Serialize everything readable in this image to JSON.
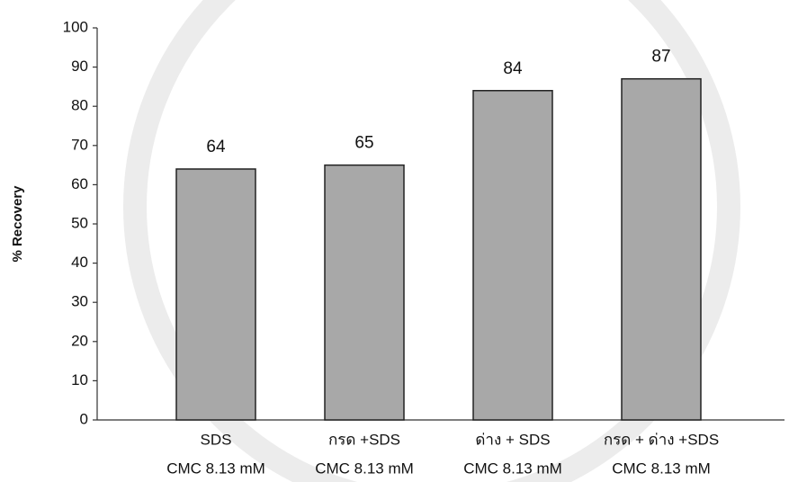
{
  "chart_data": {
    "type": "bar",
    "y_label": "% Recovery",
    "categories": [
      [
        "SDS",
        "CMC 8.13 mM"
      ],
      [
        "กรด +SDS",
        "CMC 8.13 mM"
      ],
      [
        "ด่าง + SDS",
        "CMC 8.13 mM"
      ],
      [
        "กรด + ด่าง +SDS",
        "CMC 8.13 mM"
      ]
    ],
    "values": [
      64,
      65,
      84,
      87
    ],
    "color": "#a8a8a8",
    "ylim": [
      0,
      100
    ],
    "yticks": [
      0,
      10,
      20,
      30,
      40,
      50,
      60,
      70,
      80,
      90,
      100
    ],
    "grid": false
  }
}
